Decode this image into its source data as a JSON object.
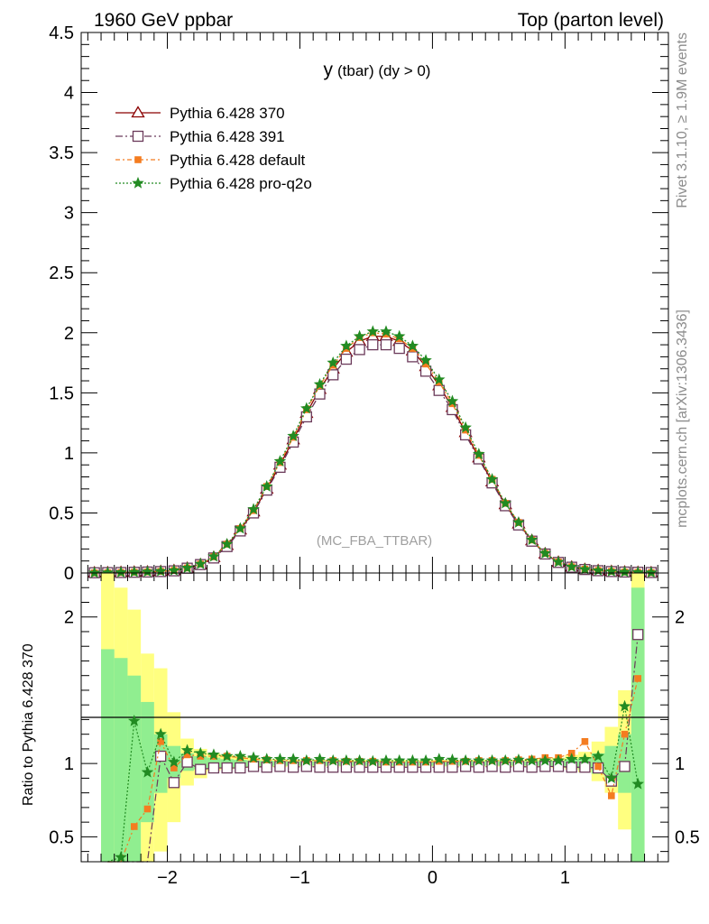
{
  "header": {
    "left": "1960 GeV ppbar",
    "right": "Top (parton level)"
  },
  "side_labels": {
    "rivet": "Rivet 3.1.10, ≥ 1.9M events",
    "mcplots": "mcplots.cern.ch [arXiv:1306.3436]"
  },
  "watermark": "(MC_FBA_TTBAR)",
  "colors": {
    "p370": "#8b0000",
    "p391": "#6b3a5a",
    "pdefault": "#f47c20",
    "pq2o": "#228b22",
    "band_inner": "#90ee90",
    "band_outer": "#ffff80"
  },
  "chart_data": [
    {
      "type": "line",
      "title": "y (tbar) (dy > 0)",
      "title_main": "y",
      "title_rest": "(tbar) (dy > 0)",
      "xlim": [
        -2.65,
        1.78
      ],
      "ylim": [
        0,
        4.5
      ],
      "x_ticks": [
        -2,
        -1,
        0,
        1
      ],
      "y_ticks": [
        "0",
        "0.5",
        "1",
        "1.5",
        "2",
        "2.5",
        "3",
        "3.5",
        "4",
        "4.5"
      ],
      "grid": false,
      "legend_position": "top-left",
      "x": [
        -2.55,
        -2.45,
        -2.35,
        -2.25,
        -2.15,
        -2.05,
        -1.95,
        -1.85,
        -1.75,
        -1.65,
        -1.55,
        -1.45,
        -1.35,
        -1.25,
        -1.15,
        -1.05,
        -0.95,
        -0.85,
        -0.75,
        -0.65,
        -0.55,
        -0.45,
        -0.35,
        -0.25,
        -0.15,
        -0.05,
        0.05,
        0.15,
        0.25,
        0.35,
        0.45,
        0.55,
        0.65,
        0.75,
        0.85,
        0.95,
        1.05,
        1.15,
        1.25,
        1.35,
        1.45,
        1.55,
        1.65
      ],
      "series": [
        {
          "name": "Pythia 6.428 370",
          "marker": "triangle",
          "values": [
            0.002,
            0.003,
            0.005,
            0.007,
            0.009,
            0.013,
            0.02,
            0.04,
            0.07,
            0.13,
            0.23,
            0.36,
            0.51,
            0.7,
            0.9,
            1.11,
            1.33,
            1.53,
            1.7,
            1.84,
            1.93,
            1.97,
            1.97,
            1.93,
            1.85,
            1.72,
            1.56,
            1.38,
            1.17,
            0.96,
            0.76,
            0.57,
            0.41,
            0.27,
            0.16,
            0.09,
            0.05,
            0.03,
            0.02,
            0.013,
            0.008,
            0.005,
            0.003
          ]
        },
        {
          "name": "Pythia 6.428 391",
          "marker": "open-square",
          "values": [
            0.002,
            0.003,
            0.004,
            0.006,
            0.008,
            0.012,
            0.018,
            0.04,
            0.07,
            0.125,
            0.22,
            0.35,
            0.5,
            0.69,
            0.88,
            1.09,
            1.3,
            1.49,
            1.65,
            1.78,
            1.86,
            1.9,
            1.9,
            1.87,
            1.8,
            1.68,
            1.52,
            1.36,
            1.15,
            0.95,
            0.75,
            0.56,
            0.4,
            0.265,
            0.158,
            0.088,
            0.048,
            0.029,
            0.019,
            0.012,
            0.008,
            0.006,
            0.004
          ]
        },
        {
          "name": "Pythia 6.428 default",
          "marker": "filled-square",
          "values": [
            0.001,
            0.002,
            0.004,
            0.006,
            0.009,
            0.013,
            0.021,
            0.042,
            0.074,
            0.135,
            0.24,
            0.37,
            0.52,
            0.72,
            0.92,
            1.13,
            1.36,
            1.56,
            1.73,
            1.87,
            1.96,
            2.0,
            1.99,
            1.95,
            1.87,
            1.74,
            1.59,
            1.41,
            1.19,
            0.98,
            0.78,
            0.58,
            0.42,
            0.275,
            0.163,
            0.092,
            0.052,
            0.032,
            0.021,
            0.013,
            0.008,
            0.005,
            0.003
          ]
        },
        {
          "name": "Pythia 6.428 pro-q2o",
          "marker": "star",
          "values": [
            0.001,
            0.003,
            0.005,
            0.007,
            0.01,
            0.015,
            0.021,
            0.042,
            0.075,
            0.137,
            0.24,
            0.37,
            0.53,
            0.72,
            0.93,
            1.14,
            1.37,
            1.57,
            1.75,
            1.89,
            1.97,
            2.01,
            2.01,
            1.97,
            1.89,
            1.77,
            1.61,
            1.43,
            1.21,
            0.99,
            0.78,
            0.58,
            0.42,
            0.276,
            0.163,
            0.091,
            0.051,
            0.031,
            0.02,
            0.013,
            0.008,
            0.005,
            0.003
          ]
        }
      ]
    },
    {
      "type": "line",
      "ylabel": "Ratio to Pythia 6.428 370",
      "xlim": [
        -2.65,
        1.78
      ],
      "ylim": [
        0.33,
        2.3
      ],
      "x_ticks": [
        "−2",
        "−1",
        "0",
        "1"
      ],
      "y_ticks": [
        "0.5",
        "1",
        "2"
      ],
      "reference_line": 1,
      "x": [
        -2.45,
        -2.35,
        -2.25,
        -2.15,
        -2.05,
        -1.95,
        -1.85,
        -1.75,
        -1.65,
        -1.55,
        -1.45,
        -1.35,
        -1.25,
        -1.15,
        -1.05,
        -0.95,
        -0.85,
        -0.75,
        -0.65,
        -0.55,
        -0.45,
        -0.35,
        -0.25,
        -0.15,
        -0.05,
        0.05,
        0.15,
        0.25,
        0.35,
        0.45,
        0.55,
        0.65,
        0.75,
        0.85,
        0.95,
        1.05,
        1.15,
        1.25,
        1.35,
        1.45,
        1.55
      ],
      "bands": {
        "edges": [
          -2.5,
          -2.4,
          -2.3,
          -2.2,
          -2.1,
          -2.0,
          -1.9,
          -1.8,
          -1.7,
          -1.6,
          -1.5,
          -1.4,
          -1.3,
          -1.2,
          -1.1,
          -1.0,
          -0.9,
          -0.8,
          -0.7,
          -0.6,
          -0.5,
          -0.4,
          -0.3,
          -0.2,
          -0.1,
          0.0,
          0.1,
          0.2,
          0.3,
          0.4,
          0.5,
          0.6,
          0.7,
          0.8,
          0.9,
          1.0,
          1.1,
          1.2,
          1.3,
          1.4,
          1.5,
          1.6
        ],
        "inner": [
          [
            0.3,
            1.78
          ],
          [
            0.3,
            1.72
          ],
          [
            0.3,
            1.6
          ],
          [
            0.6,
            1.42
          ],
          [
            0.8,
            1.2
          ],
          [
            0.9,
            1.12
          ],
          [
            0.95,
            1.07
          ],
          [
            0.96,
            1.05
          ],
          [
            0.97,
            1.04
          ],
          [
            0.97,
            1.03
          ],
          [
            0.975,
            1.025
          ],
          [
            0.98,
            1.02
          ],
          [
            0.98,
            1.02
          ],
          [
            0.985,
            1.015
          ],
          [
            0.985,
            1.015
          ],
          [
            0.985,
            1.015
          ],
          [
            0.985,
            1.015
          ],
          [
            0.985,
            1.015
          ],
          [
            0.985,
            1.015
          ],
          [
            0.985,
            1.015
          ],
          [
            0.985,
            1.015
          ],
          [
            0.985,
            1.015
          ],
          [
            0.985,
            1.015
          ],
          [
            0.985,
            1.015
          ],
          [
            0.985,
            1.015
          ],
          [
            0.985,
            1.015
          ],
          [
            0.985,
            1.015
          ],
          [
            0.985,
            1.015
          ],
          [
            0.985,
            1.015
          ],
          [
            0.985,
            1.015
          ],
          [
            0.985,
            1.015
          ],
          [
            0.985,
            1.015
          ],
          [
            0.985,
            1.015
          ],
          [
            0.98,
            1.02
          ],
          [
            0.98,
            1.02
          ],
          [
            0.97,
            1.03
          ],
          [
            0.96,
            1.04
          ],
          [
            0.93,
            1.07
          ],
          [
            0.88,
            1.12
          ],
          [
            0.8,
            1.2
          ],
          [
            0.3,
            2.2
          ]
        ],
        "outer": [
          [
            0.3,
            2.3
          ],
          [
            0.3,
            2.2
          ],
          [
            0.3,
            2.05
          ],
          [
            0.3,
            1.75
          ],
          [
            0.4,
            1.65
          ],
          [
            0.6,
            1.35
          ],
          [
            0.85,
            1.17
          ],
          [
            0.9,
            1.1
          ],
          [
            0.95,
            1.07
          ],
          [
            0.96,
            1.06
          ],
          [
            0.97,
            1.05
          ],
          [
            0.97,
            1.04
          ],
          [
            0.975,
            1.03
          ],
          [
            0.975,
            1.03
          ],
          [
            0.98,
            1.025
          ],
          [
            0.98,
            1.025
          ],
          [
            0.98,
            1.025
          ],
          [
            0.98,
            1.025
          ],
          [
            0.98,
            1.025
          ],
          [
            0.98,
            1.025
          ],
          [
            0.98,
            1.025
          ],
          [
            0.98,
            1.025
          ],
          [
            0.98,
            1.025
          ],
          [
            0.98,
            1.025
          ],
          [
            0.98,
            1.025
          ],
          [
            0.98,
            1.025
          ],
          [
            0.98,
            1.025
          ],
          [
            0.98,
            1.025
          ],
          [
            0.98,
            1.025
          ],
          [
            0.98,
            1.025
          ],
          [
            0.98,
            1.025
          ],
          [
            0.98,
            1.025
          ],
          [
            0.975,
            1.03
          ],
          [
            0.975,
            1.03
          ],
          [
            0.97,
            1.04
          ],
          [
            0.96,
            1.06
          ],
          [
            0.94,
            1.08
          ],
          [
            0.88,
            1.15
          ],
          [
            0.8,
            1.25
          ],
          [
            0.55,
            1.5
          ],
          [
            0.3,
            2.3
          ]
        ]
      },
      "series": [
        {
          "name": "Pythia 6.428 391",
          "values": [
            0.3,
            0.3,
            0.3,
            0.3,
            1.05,
            0.87,
            1.01,
            0.96,
            0.97,
            0.97,
            0.97,
            0.98,
            0.975,
            0.98,
            0.975,
            0.98,
            0.975,
            0.975,
            0.975,
            0.975,
            0.975,
            0.975,
            0.975,
            0.975,
            0.975,
            0.975,
            0.975,
            0.98,
            0.975,
            0.98,
            0.975,
            0.98,
            0.975,
            0.98,
            0.98,
            0.975,
            0.975,
            0.97,
            0.88,
            0.98,
            1.88
          ]
        },
        {
          "name": "Pythia 6.428 default",
          "values": [
            0.3,
            0.3,
            0.57,
            0.69,
            1.15,
            0.97,
            1.06,
            1.05,
            1.05,
            1.05,
            1.04,
            1.03,
            1.025,
            1.02,
            1.02,
            1.02,
            1.02,
            1.02,
            1.015,
            1.015,
            1.015,
            1.01,
            1.01,
            1.01,
            1.01,
            1.015,
            1.015,
            1.015,
            1.02,
            1.02,
            1.02,
            1.025,
            1.03,
            1.04,
            1.04,
            1.07,
            1.15,
            0.98,
            0.78,
            1.2,
            1.58
          ]
        },
        {
          "name": "Pythia 6.428 pro-q2o",
          "values": [
            0.3,
            0.36,
            1.29,
            0.94,
            1.2,
            1.01,
            1.09,
            1.07,
            1.06,
            1.05,
            1.05,
            1.04,
            1.03,
            1.03,
            1.03,
            1.02,
            1.03,
            1.02,
            1.02,
            1.02,
            1.015,
            1.02,
            1.02,
            1.02,
            1.02,
            1.03,
            1.025,
            1.02,
            1.02,
            1.02,
            1.02,
            1.025,
            1.02,
            1.02,
            1.02,
            1.03,
            1.03,
            1.05,
            0.9,
            1.39,
            0.86
          ]
        }
      ]
    }
  ]
}
